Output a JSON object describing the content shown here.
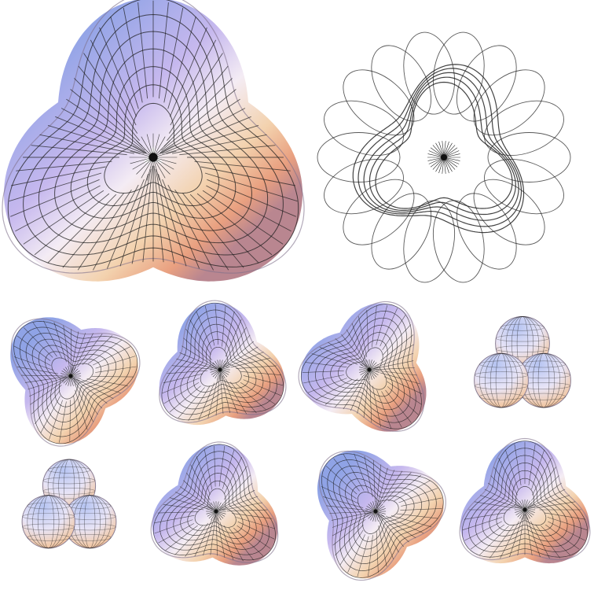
{
  "figure": {
    "background": "#ffffff",
    "gradient_colors": [
      "#8fa3e6",
      "#c6b8ee",
      "#f4ecf4",
      "#f3d2ae",
      "#e9a080",
      "#b98690"
    ],
    "grid_line_color": "#1d1d1d",
    "wireframe_color": "#222222",
    "panels": [
      {
        "id": "large-shaded",
        "kind": "shaded-knot",
        "lobes": 3
      },
      {
        "id": "large-wireframe",
        "kind": "wireframe-knot",
        "lobes": 3
      },
      {
        "id": "stage-1",
        "kind": "shaded-knot",
        "lobes": 3
      },
      {
        "id": "stage-2",
        "kind": "shaded-knot",
        "lobes": 3
      },
      {
        "id": "stage-3",
        "kind": "shaded-knot",
        "lobes": 3
      },
      {
        "id": "stage-4",
        "kind": "shaded-spheres",
        "lobes": 3
      },
      {
        "id": "stage-5",
        "kind": "shaded-spheres",
        "lobes": 3
      },
      {
        "id": "stage-6",
        "kind": "shaded-knot",
        "lobes": 3
      },
      {
        "id": "stage-7",
        "kind": "shaded-knot",
        "lobes": 3
      },
      {
        "id": "stage-8",
        "kind": "shaded-knot",
        "lobes": 3
      }
    ]
  }
}
